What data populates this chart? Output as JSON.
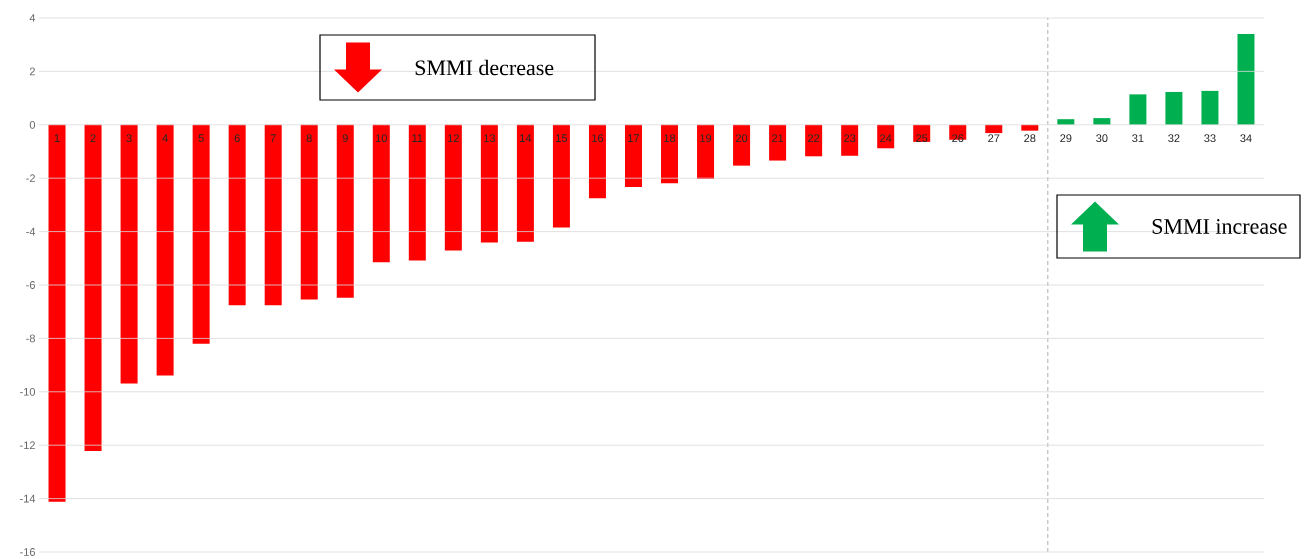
{
  "chart_data": {
    "type": "bar",
    "x": [
      1,
      2,
      3,
      4,
      5,
      6,
      7,
      8,
      9,
      10,
      11,
      12,
      13,
      14,
      15,
      16,
      17,
      18,
      19,
      20,
      21,
      22,
      23,
      24,
      25,
      26,
      27,
      28,
      29,
      30,
      31,
      32,
      33,
      34
    ],
    "values": [
      -14.12,
      -12.22,
      -9.69,
      -9.39,
      -8.2,
      -6.76,
      -6.76,
      -6.54,
      -6.48,
      -5.15,
      -5.08,
      -4.71,
      -4.41,
      -4.38,
      -3.85,
      -2.75,
      -2.33,
      -2.19,
      -2.03,
      -1.53,
      -1.34,
      -1.18,
      -1.16,
      -0.88,
      -0.64,
      -0.56,
      -0.31,
      -0.22,
      0.21,
      0.25,
      1.14,
      1.23,
      1.27,
      3.4
    ],
    "colors": [
      "#ff0000",
      "#ff0000",
      "#ff0000",
      "#ff0000",
      "#ff0000",
      "#ff0000",
      "#ff0000",
      "#ff0000",
      "#ff0000",
      "#ff0000",
      "#ff0000",
      "#ff0000",
      "#ff0000",
      "#ff0000",
      "#ff0000",
      "#ff0000",
      "#ff0000",
      "#ff0000",
      "#ff0000",
      "#ff0000",
      "#ff0000",
      "#ff0000",
      "#ff0000",
      "#ff0000",
      "#ff0000",
      "#ff0000",
      "#ff0000",
      "#ff0000",
      "#00b050",
      "#00b050",
      "#00b050",
      "#00b050",
      "#00b050",
      "#00b050"
    ],
    "xlim": [
      0.5,
      34.5
    ],
    "xticks": [
      1,
      2,
      3,
      4,
      5,
      6,
      7,
      8,
      9,
      10,
      11,
      12,
      13,
      14,
      15,
      16,
      17,
      18,
      19,
      20,
      21,
      22,
      23,
      24,
      25,
      26,
      27,
      28,
      29,
      30,
      31,
      32,
      33,
      34
    ],
    "ylim": [
      -16,
      4
    ],
    "yticks": [
      -16,
      -14,
      -12,
      -10,
      -8,
      -6,
      -4,
      -2,
      0,
      2,
      4
    ],
    "grid": "y",
    "ref_lines": [
      {
        "axis": "x",
        "value": 28.5,
        "color": "#a6a6a6",
        "line_style": "dashed"
      }
    ],
    "annotations": [
      "SMMI decrease",
      "SMMI increase"
    ]
  }
}
